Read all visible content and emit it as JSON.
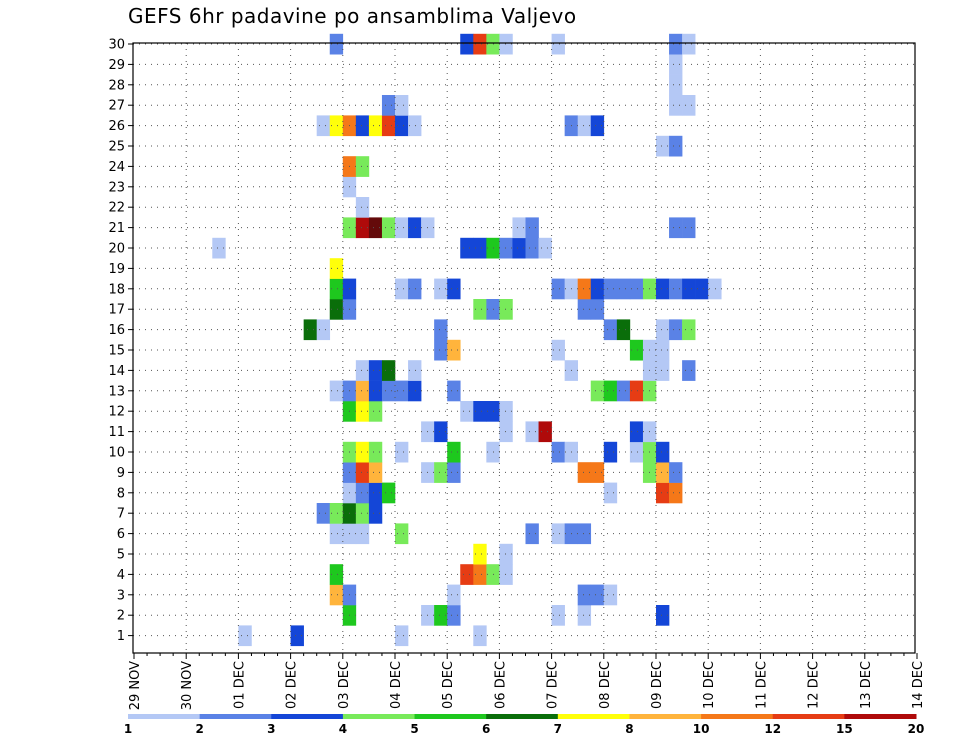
{
  "chart_data": {
    "type": "heatmap",
    "title": "GEFS 6hr padavine po ansamblima Valjevo",
    "xlabel": "",
    "ylabel": "",
    "x_ticks": [
      "29 NOV",
      "30 NOV",
      "01 DEC",
      "02 DEC",
      "03 DEC",
      "04 DEC",
      "05 DEC",
      "06 DEC",
      "07 DEC",
      "08 DEC",
      "09 DEC",
      "10 DEC",
      "11 DEC",
      "12 DEC",
      "13 DEC",
      "14 DEC"
    ],
    "y_ticks": [
      "1",
      "2",
      "3",
      "4",
      "5",
      "6",
      "7",
      "8",
      "9",
      "10",
      "11",
      "12",
      "13",
      "14",
      "15",
      "16",
      "17",
      "18",
      "19",
      "20",
      "21",
      "22",
      "23",
      "24",
      "25",
      "26",
      "27",
      "28",
      "29",
      "30"
    ],
    "x_unit": "6-hour step from 29 NOV 00Z (4 steps per day)",
    "y_unit": "ensemble member",
    "grid": true,
    "colorbar": {
      "labels": [
        "1",
        "2",
        "3",
        "4",
        "5",
        "6",
        "7",
        "8",
        "10",
        "12",
        "15",
        "20"
      ],
      "colors": [
        "#b4c8f5",
        "#5a82e6",
        "#1446d7",
        "#78ea5a",
        "#1ec81e",
        "#0a6e0a",
        "#ffff0a",
        "#ffb43c",
        "#f57819",
        "#e63c14",
        "#af0a0a",
        "#640a0a"
      ]
    },
    "values": [
      [
        8,
        1,
        1
      ],
      [
        12,
        1,
        3
      ],
      [
        20,
        1,
        1
      ],
      [
        26,
        1,
        1
      ],
      [
        16,
        2,
        5
      ],
      [
        22,
        2,
        1
      ],
      [
        23,
        2,
        5
      ],
      [
        24,
        2,
        2
      ],
      [
        32,
        2,
        1
      ],
      [
        34,
        2,
        1
      ],
      [
        40,
        2,
        3
      ],
      [
        15,
        3,
        8
      ],
      [
        16,
        3,
        2
      ],
      [
        24,
        3,
        1
      ],
      [
        34,
        3,
        2
      ],
      [
        35,
        3,
        2
      ],
      [
        36,
        3,
        1
      ],
      [
        15,
        4,
        5
      ],
      [
        25,
        4,
        12
      ],
      [
        26,
        4,
        10
      ],
      [
        27,
        4,
        4
      ],
      [
        28,
        4,
        1
      ],
      [
        26,
        5,
        7
      ],
      [
        28,
        5,
        1
      ],
      [
        15,
        6,
        1
      ],
      [
        16,
        6,
        1
      ],
      [
        17,
        6,
        1
      ],
      [
        20,
        6,
        4
      ],
      [
        30,
        6,
        2
      ],
      [
        32,
        6,
        1
      ],
      [
        33,
        6,
        2
      ],
      [
        34,
        6,
        2
      ],
      [
        14,
        7,
        2
      ],
      [
        15,
        7,
        4
      ],
      [
        16,
        7,
        6
      ],
      [
        17,
        7,
        4
      ],
      [
        18,
        7,
        3
      ],
      [
        16,
        8,
        1
      ],
      [
        17,
        8,
        2
      ],
      [
        18,
        8,
        3
      ],
      [
        19,
        8,
        5
      ],
      [
        36,
        8,
        1
      ],
      [
        40,
        8,
        12
      ],
      [
        41,
        8,
        10
      ],
      [
        16,
        9,
        2
      ],
      [
        17,
        9,
        12
      ],
      [
        18,
        9,
        8
      ],
      [
        22,
        9,
        1
      ],
      [
        23,
        9,
        4
      ],
      [
        24,
        9,
        2
      ],
      [
        34,
        9,
        10
      ],
      [
        35,
        9,
        10
      ],
      [
        39,
        9,
        4
      ],
      [
        40,
        9,
        8
      ],
      [
        41,
        9,
        2
      ],
      [
        16,
        10,
        4
      ],
      [
        17,
        10,
        7
      ],
      [
        18,
        10,
        4
      ],
      [
        20,
        10,
        1
      ],
      [
        24,
        10,
        5
      ],
      [
        27,
        10,
        1
      ],
      [
        32,
        10,
        2
      ],
      [
        33,
        10,
        1
      ],
      [
        36,
        10,
        3
      ],
      [
        38,
        10,
        1
      ],
      [
        39,
        10,
        4
      ],
      [
        40,
        10,
        3
      ],
      [
        22,
        11,
        1
      ],
      [
        23,
        11,
        3
      ],
      [
        28,
        11,
        1
      ],
      [
        30,
        11,
        1
      ],
      [
        31,
        11,
        15
      ],
      [
        38,
        11,
        3
      ],
      [
        39,
        11,
        1
      ],
      [
        16,
        12,
        5
      ],
      [
        17,
        12,
        7
      ],
      [
        18,
        12,
        4
      ],
      [
        25,
        12,
        1
      ],
      [
        26,
        12,
        3
      ],
      [
        27,
        12,
        3
      ],
      [
        28,
        12,
        1
      ],
      [
        15,
        13,
        1
      ],
      [
        16,
        13,
        2
      ],
      [
        17,
        13,
        8
      ],
      [
        18,
        13,
        3
      ],
      [
        19,
        13,
        2
      ],
      [
        20,
        13,
        2
      ],
      [
        21,
        13,
        3
      ],
      [
        24,
        13,
        2
      ],
      [
        35,
        13,
        4
      ],
      [
        36,
        13,
        5
      ],
      [
        37,
        13,
        2
      ],
      [
        38,
        13,
        12
      ],
      [
        39,
        13,
        4
      ],
      [
        17,
        14,
        1
      ],
      [
        18,
        14,
        3
      ],
      [
        19,
        14,
        6
      ],
      [
        21,
        14,
        1
      ],
      [
        33,
        14,
        1
      ],
      [
        39,
        14,
        1
      ],
      [
        40,
        14,
        1
      ],
      [
        42,
        14,
        2
      ],
      [
        38,
        15,
        5
      ],
      [
        39,
        15,
        1
      ],
      [
        40,
        15,
        1
      ],
      [
        23,
        15,
        2
      ],
      [
        24,
        15,
        8
      ],
      [
        32,
        15,
        1
      ],
      [
        13,
        16,
        6
      ],
      [
        14,
        16,
        1
      ],
      [
        23,
        16,
        2
      ],
      [
        36,
        16,
        2
      ],
      [
        37,
        16,
        6
      ],
      [
        40,
        16,
        1
      ],
      [
        41,
        16,
        2
      ],
      [
        42,
        16,
        4
      ],
      [
        15,
        17,
        6
      ],
      [
        16,
        17,
        2
      ],
      [
        26,
        17,
        4
      ],
      [
        27,
        17,
        2
      ],
      [
        28,
        17,
        4
      ],
      [
        34,
        17,
        2
      ],
      [
        35,
        17,
        2
      ],
      [
        15,
        18,
        5
      ],
      [
        16,
        18,
        3
      ],
      [
        20,
        18,
        1
      ],
      [
        21,
        18,
        2
      ],
      [
        23,
        18,
        1
      ],
      [
        24,
        18,
        3
      ],
      [
        32,
        18,
        2
      ],
      [
        33,
        18,
        1
      ],
      [
        34,
        18,
        10
      ],
      [
        35,
        18,
        3
      ],
      [
        36,
        18,
        2
      ],
      [
        37,
        18,
        2
      ],
      [
        38,
        18,
        2
      ],
      [
        39,
        18,
        4
      ],
      [
        40,
        18,
        3
      ],
      [
        41,
        18,
        2
      ],
      [
        42,
        18,
        3
      ],
      [
        43,
        18,
        3
      ],
      [
        44,
        18,
        1
      ],
      [
        15,
        19,
        7
      ],
      [
        6,
        20,
        1
      ],
      [
        25,
        20,
        3
      ],
      [
        26,
        20,
        3
      ],
      [
        27,
        20,
        5
      ],
      [
        28,
        20,
        2
      ],
      [
        29,
        20,
        3
      ],
      [
        30,
        20,
        2
      ],
      [
        31,
        20,
        1
      ],
      [
        16,
        21,
        4
      ],
      [
        17,
        21,
        15
      ],
      [
        18,
        21,
        20
      ],
      [
        19,
        21,
        4
      ],
      [
        20,
        21,
        1
      ],
      [
        21,
        21,
        3
      ],
      [
        22,
        21,
        1
      ],
      [
        29,
        21,
        1
      ],
      [
        30,
        21,
        2
      ],
      [
        41,
        21,
        2
      ],
      [
        42,
        21,
        2
      ],
      [
        17,
        22,
        1
      ],
      [
        16,
        23,
        1
      ],
      [
        16,
        24,
        10
      ],
      [
        17,
        24,
        4
      ],
      [
        40,
        25,
        1
      ],
      [
        41,
        25,
        2
      ],
      [
        14,
        26,
        1
      ],
      [
        15,
        26,
        7
      ],
      [
        16,
        26,
        10
      ],
      [
        17,
        26,
        3
      ],
      [
        18,
        26,
        7
      ],
      [
        19,
        26,
        12
      ],
      [
        20,
        26,
        3
      ],
      [
        21,
        26,
        1
      ],
      [
        33,
        26,
        2
      ],
      [
        34,
        26,
        1
      ],
      [
        35,
        26,
        3
      ],
      [
        19,
        27,
        2
      ],
      [
        20,
        27,
        1
      ],
      [
        41,
        27,
        1
      ],
      [
        42,
        27,
        1
      ],
      [
        41,
        28,
        1
      ],
      [
        41,
        29,
        1
      ],
      [
        15,
        30,
        2
      ],
      [
        25,
        30,
        3
      ],
      [
        26,
        30,
        12
      ],
      [
        27,
        30,
        4
      ],
      [
        28,
        30,
        1
      ],
      [
        32,
        30,
        1
      ],
      [
        41,
        30,
        2
      ],
      [
        42,
        30,
        1
      ]
    ]
  }
}
